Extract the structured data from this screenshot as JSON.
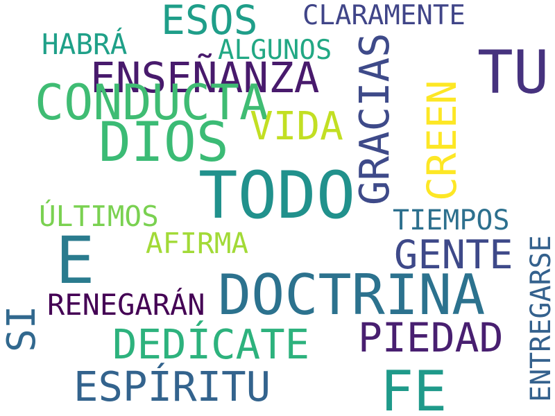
{
  "words": [
    {
      "text": "DOCTRINA",
      "color": "#2c728e"
    },
    {
      "text": "TODO",
      "color": "#21918c"
    },
    {
      "text": "DIOS",
      "color": "#3bbb75"
    },
    {
      "text": "FE",
      "color": "#1f9a8a"
    },
    {
      "text": "TU",
      "color": "#46327e"
    },
    {
      "text": "E",
      "color": "#2a7b8e"
    },
    {
      "text": "ENSEÑANZA",
      "color": "#481a6c"
    },
    {
      "text": "GRACIAS",
      "color": "#3e4a89"
    },
    {
      "text": "CONDUCTA",
      "color": "#3fbc73"
    },
    {
      "text": "SI",
      "color": "#31688e"
    },
    {
      "text": "ESOS",
      "color": "#1f9e89"
    },
    {
      "text": "VIDA",
      "color": "#c2df23"
    },
    {
      "text": "CREEN",
      "color": "#fde725"
    },
    {
      "text": "GENTE",
      "color": "#3e4989"
    },
    {
      "text": "PIEDAD",
      "color": "#481f70"
    },
    {
      "text": "DEDÍCATE",
      "color": "#2db27d"
    },
    {
      "text": "ESPÍRITU",
      "color": "#33638d"
    },
    {
      "text": "ENTREGARSE",
      "color": "#34618d"
    },
    {
      "text": "TIEMPOS",
      "color": "#2d708e"
    },
    {
      "text": "ÚLTIMOS",
      "color": "#7ad151"
    },
    {
      "text": "AFIRMA",
      "color": "#a2da37"
    },
    {
      "text": "RENEGARÁN",
      "color": "#440154"
    },
    {
      "text": "HABRÁ",
      "color": "#1fa088"
    },
    {
      "text": "ALGUNOS",
      "color": "#22a884"
    },
    {
      "text": "CLARAMENTE",
      "color": "#404588"
    }
  ]
}
